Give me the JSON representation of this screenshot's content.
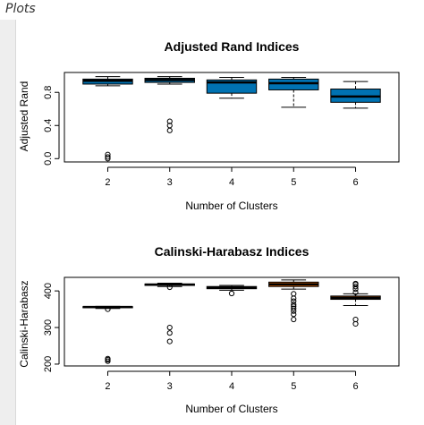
{
  "app": {
    "pane_title": "Plots"
  },
  "colors": {
    "box_blue": "#0072B2",
    "box_orange": "#D55E00",
    "frame": "#000000"
  },
  "chart_data": [
    {
      "type": "boxplot",
      "title": "Adjusted Rand Indices",
      "xlabel": "Number of Clusters",
      "ylabel": "Adjusted Rand",
      "ylim": [
        -0.04,
        1.04
      ],
      "yticks": [
        0.0,
        0.4,
        0.8
      ],
      "ytick_labels": [
        "0.0",
        "0.4",
        "0.8"
      ],
      "categories": [
        "2",
        "3",
        "4",
        "5",
        "6"
      ],
      "boxes": [
        {
          "category": "2",
          "whisker_low": 0.88,
          "q1": 0.9,
          "median": 0.94,
          "q3": 0.96,
          "whisker_high": 0.99,
          "outliers": [
            0.0,
            0.02,
            0.05
          ],
          "color": "#0072B2"
        },
        {
          "category": "3",
          "whisker_low": 0.9,
          "q1": 0.92,
          "median": 0.95,
          "q3": 0.97,
          "whisker_high": 0.99,
          "outliers": [
            0.34,
            0.4,
            0.45
          ],
          "color": "#0072B2"
        },
        {
          "category": "4",
          "whisker_low": 0.73,
          "q1": 0.79,
          "median": 0.92,
          "q3": 0.95,
          "whisker_high": 0.98,
          "outliers": [],
          "color": "#0072B2"
        },
        {
          "category": "5",
          "whisker_low": 0.62,
          "q1": 0.83,
          "median": 0.91,
          "q3": 0.96,
          "whisker_high": 0.98,
          "outliers": [],
          "color": "#0072B2"
        },
        {
          "category": "6",
          "whisker_low": 0.61,
          "q1": 0.68,
          "median": 0.75,
          "q3": 0.84,
          "whisker_high": 0.93,
          "outliers": [],
          "color": "#0072B2"
        }
      ]
    },
    {
      "type": "boxplot",
      "title": "Calinski-Harabasz Indices",
      "xlabel": "Number of Clusters",
      "ylabel": "Calinski-Harabasz",
      "ylim": [
        195,
        437
      ],
      "yticks": [
        200,
        300,
        400
      ],
      "ytick_labels": [
        "200",
        "300",
        "400"
      ],
      "categories": [
        "2",
        "3",
        "4",
        "5",
        "6"
      ],
      "boxes": [
        {
          "category": "2",
          "whisker_low": 352,
          "q1": 354,
          "median": 356,
          "q3": 357,
          "whisker_high": 358,
          "outliers": [
            350,
            208,
            212,
            215
          ],
          "color": "#0072B2"
        },
        {
          "category": "3",
          "whisker_low": 412,
          "q1": 415,
          "median": 417,
          "q3": 419,
          "whisker_high": 421,
          "outliers": [
            410,
            300,
            285,
            262
          ],
          "color": "#0072B2"
        },
        {
          "category": "4",
          "whisker_low": 402,
          "q1": 406,
          "median": 409,
          "q3": 412,
          "whisker_high": 415,
          "outliers": [
            393
          ],
          "color": "#0072B2"
        },
        {
          "category": "5",
          "whisker_low": 405,
          "q1": 412,
          "median": 418,
          "q3": 424,
          "whisker_high": 430,
          "outliers": [
            392,
            380,
            372,
            363,
            358,
            352,
            345,
            336,
            322
          ],
          "color": "#D55E00"
        },
        {
          "category": "6",
          "whisker_low": 360,
          "q1": 377,
          "median": 381,
          "q3": 386,
          "whisker_high": 392,
          "outliers": [
            396,
            405,
            412,
            418,
            420,
            322,
            310
          ],
          "color": "#D55E00"
        }
      ]
    }
  ]
}
